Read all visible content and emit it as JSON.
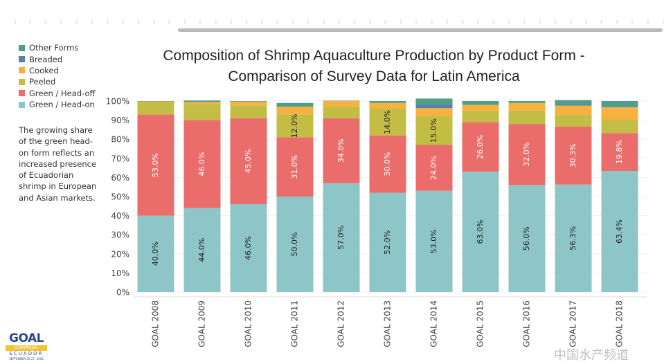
{
  "chart_data": {
    "type": "bar",
    "stacked": true,
    "title": "Composition of Shrimp Aquaculture Production by Product Form - Comparison of Survey Data for Latin America",
    "title_lines": [
      "Composition of Shrimp Aquaculture Production by Product Form -",
      "Comparison of Survey Data for Latin America"
    ],
    "xlabel": "",
    "ylabel": "",
    "ylim": [
      0,
      100
    ],
    "yticks": [
      "0%",
      "10%",
      "20%",
      "30%",
      "40%",
      "50%",
      "60%",
      "70%",
      "80%",
      "90%",
      "100%"
    ],
    "categories": [
      "GOAL 2008",
      "GOAL 2009",
      "GOAL 2010",
      "GOAL 2011",
      "GOAL 2012",
      "GOAL 2013",
      "GOAL 2014",
      "GOAL 2015",
      "GOAL 2016",
      "GOAL 2017",
      "GOAL 2018"
    ],
    "series": [
      {
        "name": "Green / Head-on",
        "color": "#8ec6c8",
        "values": [
          40,
          44,
          46,
          50,
          57,
          52,
          53,
          63,
          56,
          56.3,
          63.4
        ],
        "labels": [
          "40.0%",
          "44.0%",
          "46.0%",
          "50.0%",
          "57.0%",
          "52.0%",
          "53.0%",
          "63.0%",
          "56.0%",
          "56.3%",
          "63.4%"
        ],
        "label_color": "#222"
      },
      {
        "name": "Green / Head-off",
        "color": "#ea6d6b",
        "values": [
          53,
          46,
          45,
          31,
          34,
          30,
          24,
          26,
          32,
          30.3,
          19.8
        ],
        "labels": [
          "53.0%",
          "46.0%",
          "45.0%",
          "31.0%",
          "34.0%",
          "30.0%",
          "24.0%",
          "26.0%",
          "32.0%",
          "30.3%",
          "19.8%"
        ],
        "label_color": "#fff"
      },
      {
        "name": "Peeled",
        "color": "#c3bd46",
        "values": [
          6.5,
          8.5,
          6.7,
          12,
          6,
          14,
          15,
          6,
          7,
          6,
          7
        ],
        "labels": [
          "",
          "",
          "",
          "12.0%",
          "",
          "14.0%",
          "15.0%",
          "",
          "",
          "",
          ""
        ],
        "label_color": "#222"
      },
      {
        "name": "Cooked",
        "color": "#f6b13f",
        "values": [
          0.3,
          1,
          2,
          4,
          3,
          3,
          4.3,
          3,
          4,
          5,
          6.5
        ],
        "labels": [],
        "label_color": "#222"
      },
      {
        "name": "Breaded",
        "color": "#5b7fa8",
        "values": [
          0,
          0.3,
          0,
          0,
          0,
          0,
          2,
          0,
          0,
          0.4,
          0.3
        ],
        "labels": [],
        "label_color": "#222"
      },
      {
        "name": "Other Forms",
        "color": "#4e9e89",
        "values": [
          0.2,
          0.5,
          0.3,
          2,
          0.2,
          1,
          3,
          2,
          1,
          2.5,
          3
        ],
        "labels": [],
        "label_color": "#222"
      }
    ],
    "legend": {
      "placement": "top-left",
      "order": [
        "Other Forms",
        "Breaded",
        "Cooked",
        "Peeled",
        "Green / Head-off",
        "Green / Head-on"
      ]
    },
    "grid": true
  },
  "note": "The growing share of the green head-on form reflects an increased presence of Ecuadorian shrimp in European and Asian markets.",
  "logo": {
    "main": "GOAL",
    "city": "GUAYAQUIL",
    "country": "ECUADOR",
    "dates": "SEPTEMBER 25-27, 2018"
  },
  "watermark": "中国水产频道"
}
